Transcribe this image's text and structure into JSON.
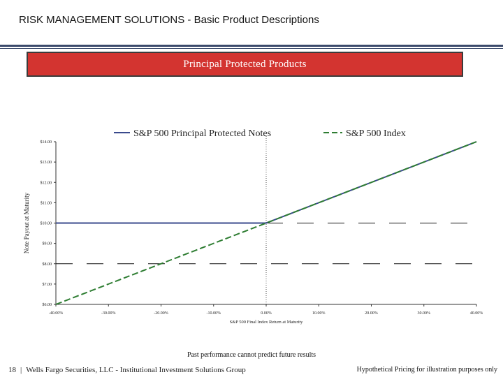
{
  "header": {
    "title": "RISK MANAGEMENT SOLUTIONS - Basic Product Descriptions",
    "banner": "Principal Protected Products"
  },
  "colors": {
    "banner_bg": "#d33430",
    "series_ppn": "#3a4a8c",
    "series_index": "#2e7d32",
    "rule": "#3b4a6b"
  },
  "chart_data": {
    "type": "line",
    "xlabel": "S&P 500 Final Index Return at Maturity",
    "ylabel": "Note Payout at Maturity",
    "x_ticks": [
      "-40.00%",
      "-30.00%",
      "-20.00%",
      "-10.00%",
      "0.00%",
      "10.00%",
      "20.00%",
      "30.00%",
      "40.00%"
    ],
    "y_ticks": [
      "$6.00",
      "$7.00",
      "$8.00",
      "$9.00",
      "$10.00",
      "$11.00",
      "$12.00",
      "$13.00",
      "$14.00"
    ],
    "xlim": [
      -40,
      40
    ],
    "ylim": [
      6,
      14
    ],
    "legend": "top",
    "series": [
      {
        "name": "S&P 500 Principal Protected Notes",
        "color": "#3a4a8c",
        "style": "solid",
        "x": [
          -40,
          -30,
          -20,
          -10,
          0,
          10,
          20,
          30,
          40
        ],
        "y": [
          10,
          10,
          10,
          10,
          10,
          11,
          12,
          13,
          14
        ]
      },
      {
        "name": "S&P 500 Index",
        "color": "#2e7d32",
        "style": "dashed",
        "x": [
          -40,
          -30,
          -20,
          -10,
          0,
          10,
          20,
          30,
          40
        ],
        "y": [
          6,
          7,
          8,
          9,
          10,
          11,
          12,
          13,
          14
        ]
      }
    ],
    "reference_lines": [
      {
        "orientation": "horizontal",
        "y": 10,
        "from_x": 0,
        "to_x": 40,
        "style": "dashed"
      },
      {
        "orientation": "horizontal",
        "y": 8,
        "from_x": -40,
        "to_x": 40,
        "style": "dashed"
      },
      {
        "orientation": "vertical",
        "x": 0,
        "style": "dotted"
      }
    ]
  },
  "disclaimer": "Past performance cannot predict future results",
  "footer": {
    "page_number": "18",
    "separator": "|",
    "org": "Wells Fargo Securities, LLC - Institutional Investment Solutions Group",
    "note": "Hypothetical Pricing for illustration purposes only"
  }
}
